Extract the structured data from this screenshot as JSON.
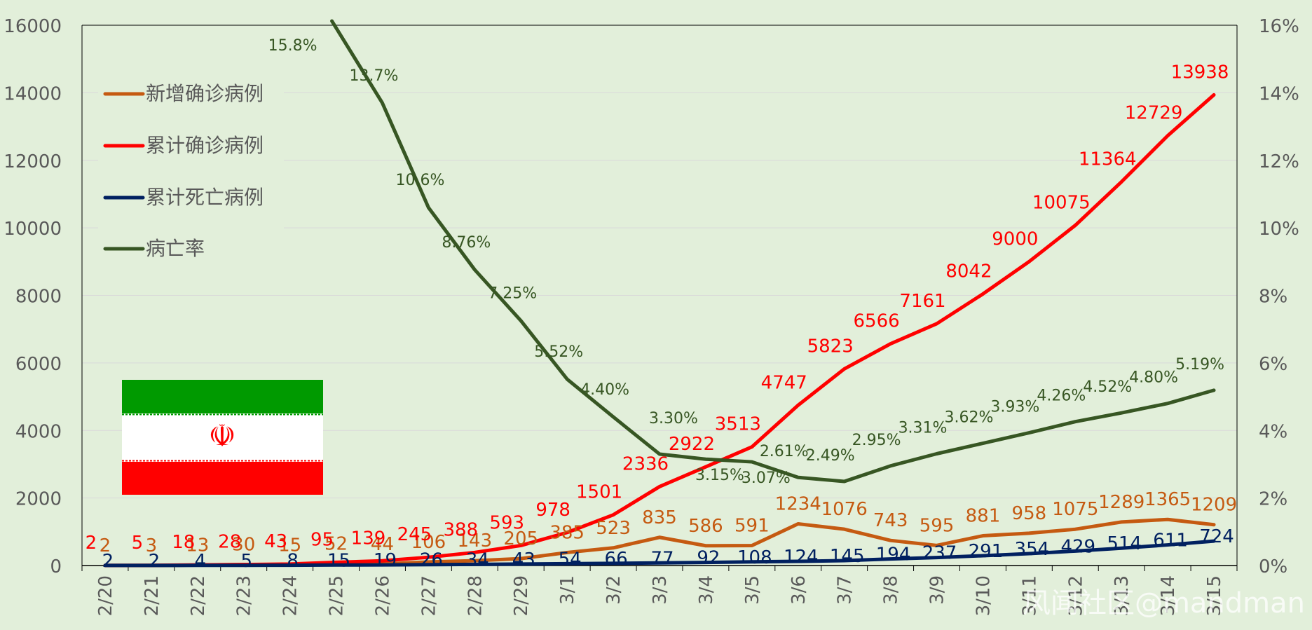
{
  "chart_data": {
    "type": "line",
    "categories": [
      "2/20",
      "2/21",
      "2/22",
      "2/23",
      "2/24",
      "2/25",
      "2/26",
      "2/27",
      "2/28",
      "2/29",
      "3/1",
      "3/2",
      "3/3",
      "3/4",
      "3/5",
      "3/6",
      "3/7",
      "3/8",
      "3/9",
      "3/10",
      "3/11",
      "3/12",
      "3/13",
      "3/14",
      "3/15"
    ],
    "y_left": {
      "min": 0,
      "max": 16000,
      "ticks": [
        "0",
        "2000",
        "4000",
        "6000",
        "8000",
        "10000",
        "12000",
        "14000",
        "16000"
      ]
    },
    "y_right": {
      "min": 0,
      "max": 0.16,
      "ticks": [
        "0%",
        "2%",
        "4%",
        "6%",
        "8%",
        "10%",
        "12%",
        "14%",
        "16%"
      ]
    },
    "grid": true,
    "legend_position": "top-left",
    "series": [
      {
        "name": "新增确诊病例",
        "axis": "left",
        "color": "#c55a11",
        "values": [
          2,
          3,
          13,
          30,
          15,
          52,
          44,
          106,
          143,
          205,
          385,
          523,
          835,
          586,
          591,
          1234,
          1076,
          743,
          595,
          881,
          958,
          1075,
          1289,
          1365,
          1209
        ],
        "labels": [
          "2",
          "3",
          "13",
          "30",
          "15",
          "52",
          "44",
          "106",
          "143",
          "205",
          "385",
          "523",
          "835",
          "586",
          "591",
          "1234",
          "1076",
          "743",
          "595",
          "881",
          "958",
          "1075",
          "1289",
          "1365",
          "1209"
        ]
      },
      {
        "name": "累计确诊病例",
        "axis": "left",
        "color": "#ff0000",
        "values": [
          2,
          5,
          18,
          28,
          43,
          95,
          139,
          245,
          388,
          593,
          978,
          1501,
          2336,
          2922,
          3513,
          4747,
          5823,
          6566,
          7161,
          8042,
          9000,
          10075,
          11364,
          12729,
          13938
        ],
        "labels": [
          "2",
          "5",
          "18",
          "28",
          "43",
          "95",
          "139",
          "245",
          "388",
          "593",
          "978",
          "1501",
          "2336",
          "2922",
          "3513",
          "4747",
          "5823",
          "6566",
          "7161",
          "8042",
          "9000",
          "10075",
          "11364",
          "12729",
          "13938"
        ]
      },
      {
        "name": "累计死亡病例",
        "axis": "left",
        "color": "#002060",
        "values": [
          2,
          2,
          4,
          5,
          8,
          15,
          19,
          26,
          34,
          43,
          54,
          66,
          77,
          92,
          108,
          124,
          145,
          194,
          237,
          291,
          354,
          429,
          514,
          611,
          724
        ],
        "labels": [
          "2",
          "2",
          "4",
          "5",
          "8",
          "15",
          "19",
          "26",
          "34",
          "43",
          "54",
          "66",
          "77",
          "92",
          "108",
          "124",
          "145",
          "194",
          "237",
          "291",
          "354",
          "429",
          "514",
          "611",
          "724"
        ]
      },
      {
        "name": "病亡率",
        "axis": "right",
        "color": "#375623",
        "values": [
          null,
          null,
          null,
          null,
          null,
          0.158,
          0.137,
          0.106,
          0.0876,
          0.0725,
          0.0552,
          0.044,
          0.033,
          0.0315,
          0.0307,
          0.0261,
          0.0249,
          0.0295,
          0.0331,
          0.0362,
          0.0393,
          0.0426,
          0.0452,
          0.048,
          0.0519
        ],
        "labels": [
          "",
          "",
          "",
          "",
          "",
          "15.8%",
          "13.7%",
          "10.6%",
          "8.76%",
          "7.25%",
          "5.52%",
          "4.40%",
          "3.30%",
          "3.15%",
          "3.07%",
          "2.61%",
          "2.49%",
          "2.95%",
          "3.31%",
          "3.62%",
          "3.93%",
          "4.26%",
          "4.52%",
          "4.80%",
          "5.19%"
        ]
      }
    ]
  },
  "legend": {
    "items": [
      "新增确诊病例",
      "累计确诊病例",
      "累计死亡病例",
      "病亡率"
    ]
  },
  "flag": {
    "emblem": "☫",
    "colors": {
      "green": "#009a00",
      "white": "#ffffff",
      "red": "#ff0000"
    }
  },
  "watermark": "风闻社区@mandman"
}
